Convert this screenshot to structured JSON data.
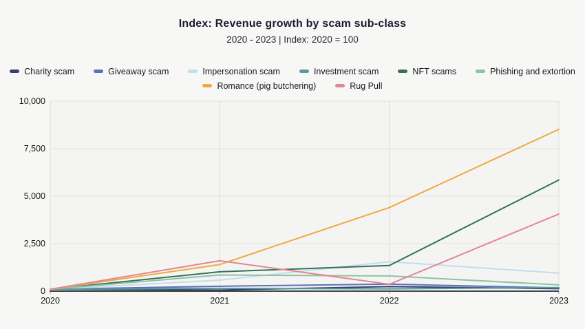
{
  "header": {
    "title": "Index: Revenue growth by scam sub-class",
    "subtitle": "2020 - 2023 | Index: 2020 = 100"
  },
  "chart_data": {
    "type": "line",
    "title": "Index: Revenue growth by scam sub-class",
    "subtitle": "2020 - 2023 | Index: 2020 = 100",
    "x_labels": [
      "2020",
      "2021",
      "2022",
      "2023"
    ],
    "y_ticks": [
      0,
      2500,
      5000,
      7500,
      10000
    ],
    "y_tick_labels": [
      "0",
      "2,500",
      "5,000",
      "7,500",
      "10,000"
    ],
    "ylim": [
      0,
      10000
    ],
    "grid": true,
    "legend_position": "top",
    "series": [
      {
        "name": "Charity scam",
        "color": "#333f6e",
        "values": [
          100,
          60,
          240,
          130
        ]
      },
      {
        "name": "Giveaway scam",
        "color": "#5a72b8",
        "values": [
          100,
          260,
          370,
          170
        ]
      },
      {
        "name": "Impersonation scam",
        "color": "#c3dded",
        "values": [
          100,
          580,
          1550,
          950
        ]
      },
      {
        "name": "Investment scam",
        "color": "#549a9f",
        "values": [
          100,
          150,
          120,
          190
        ]
      },
      {
        "name": "NFT scams",
        "color": "#36705a",
        "values": [
          100,
          1020,
          1350,
          5850
        ]
      },
      {
        "name": "Phishing and extortion",
        "color": "#8cc3a4",
        "values": [
          100,
          850,
          800,
          330
        ]
      },
      {
        "name": "Romance (pig butchering)",
        "color": "#f0a93c",
        "values": [
          100,
          1400,
          4400,
          8520
        ]
      },
      {
        "name": "Rug Pull",
        "color": "#e58591",
        "values": [
          100,
          1600,
          360,
          4060
        ]
      }
    ],
    "colors": {
      "plot_background": "#f4f4f3",
      "canvas_background": "#f7f7f6",
      "gridline": "#e2e2e0",
      "vertical_gridline": "#dcdcda",
      "axis": "#454545"
    }
  }
}
